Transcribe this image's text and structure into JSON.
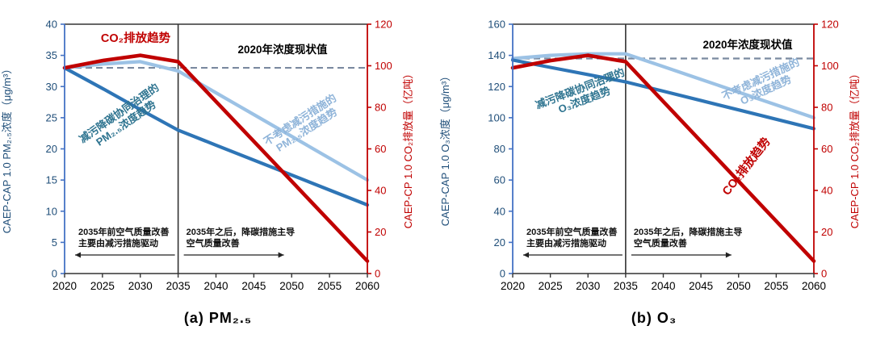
{
  "colors": {
    "red": "#C00000",
    "dark_blue": "#2E75B6",
    "light_blue": "#9CC2E5",
    "axis_line_blue": "#4472C4",
    "axis_text_blue": "#1F4E79",
    "teal_label": "#2E7490",
    "light_label": "#8FB4D9",
    "dashed_ref": "#7B8AA0",
    "frame": "#333333",
    "black": "#111111"
  },
  "chart_data": [
    {
      "type": "line",
      "title": "(a) PM₂.₅",
      "x": [
        2020,
        2025,
        2030,
        2035,
        2040,
        2045,
        2050,
        2055,
        2060
      ],
      "left_axis": {
        "title": "CAEP-CAP 1.0 PM₂.₅浓度（μg/m³）",
        "min": 0,
        "max": 40,
        "step": 5
      },
      "right_axis": {
        "title": "CAEP-CP 1.0 CO₂排放量（亿吨）",
        "min": 0,
        "max": 120,
        "step": 20
      },
      "reference": {
        "label": "2020年浓度现状值",
        "value": 33,
        "axis": "left"
      },
      "divider_year": 2035,
      "legend_position": "inline-labels",
      "grid": false,
      "series": [
        {
          "id": "noreduction",
          "label_lines": [
            "不考虑减污措施的",
            "PM₂.₅浓度趋势"
          ],
          "axis": "left",
          "color": "light_blue",
          "label_color": "light_label",
          "values": [
            33,
            33.6,
            34,
            32.5,
            29,
            25.5,
            22,
            18.5,
            15
          ]
        },
        {
          "id": "cocontrol",
          "label_lines": [
            "减污降碳协同治理的",
            "PM₂.₅浓度趋势"
          ],
          "axis": "left",
          "color": "dark_blue",
          "label_color": "teal_label",
          "values": [
            33,
            29.7,
            26.3,
            23,
            20.6,
            18.2,
            15.8,
            13.4,
            11
          ]
        },
        {
          "id": "co2",
          "label_lines": [
            "CO₂排放趋势"
          ],
          "axis": "right",
          "color": "red",
          "label_color": "red",
          "values": [
            99,
            102.5,
            105,
            102,
            82.8,
            63.6,
            44.4,
            25.2,
            6
          ]
        }
      ],
      "annotations": [
        {
          "lines": [
            "2035年前空气质量改善",
            "主要由减污措施驱动"
          ],
          "arrow": "left"
        },
        {
          "lines": [
            "2035年之后，降碳措施主导",
            "空气质量改善"
          ],
          "arrow": "right"
        }
      ]
    },
    {
      "type": "line",
      "title": "(b) O₃",
      "x": [
        2020,
        2025,
        2030,
        2035,
        2040,
        2045,
        2050,
        2055,
        2060
      ],
      "left_axis": {
        "title": "CAEP-CAP 1.0 O₃浓度（μg/m³）",
        "min": 0,
        "max": 160,
        "step": 20
      },
      "right_axis": {
        "title": "CAEP-CP 1.0 CO₂排放量（亿吨）",
        "min": 0,
        "max": 120,
        "step": 20
      },
      "reference": {
        "label": "2020年浓度现状值",
        "value": 138,
        "axis": "left"
      },
      "divider_year": 2035,
      "legend_position": "inline-labels",
      "grid": false,
      "series": [
        {
          "id": "noreduction",
          "label_lines": [
            "不考虑减污措施的",
            "O₃浓度趋势"
          ],
          "axis": "left",
          "color": "light_blue",
          "label_color": "light_label",
          "values": [
            138,
            140,
            141,
            141,
            132.8,
            124.6,
            116.4,
            108.2,
            100
          ]
        },
        {
          "id": "cocontrol",
          "label_lines": [
            "减污降碳协同治理的",
            "O₃浓度趋势"
          ],
          "axis": "left",
          "color": "dark_blue",
          "label_color": "teal_label",
          "values": [
            137,
            132.3,
            127.7,
            123,
            117,
            111,
            105,
            99,
            93
          ]
        },
        {
          "id": "co2",
          "label_lines": [
            "CO₂排放趋势"
          ],
          "axis": "right",
          "color": "red",
          "label_color": "red",
          "values": [
            99,
            102.5,
            105,
            102,
            82.8,
            63.6,
            44.4,
            25.2,
            6
          ]
        }
      ],
      "annotations": [
        {
          "lines": [
            "2035年前空气质量改善",
            "主要由减污措施驱动"
          ],
          "arrow": "left"
        },
        {
          "lines": [
            "2035年之后，降碳措施主导",
            "空气质量改善"
          ],
          "arrow": "right"
        }
      ]
    }
  ]
}
